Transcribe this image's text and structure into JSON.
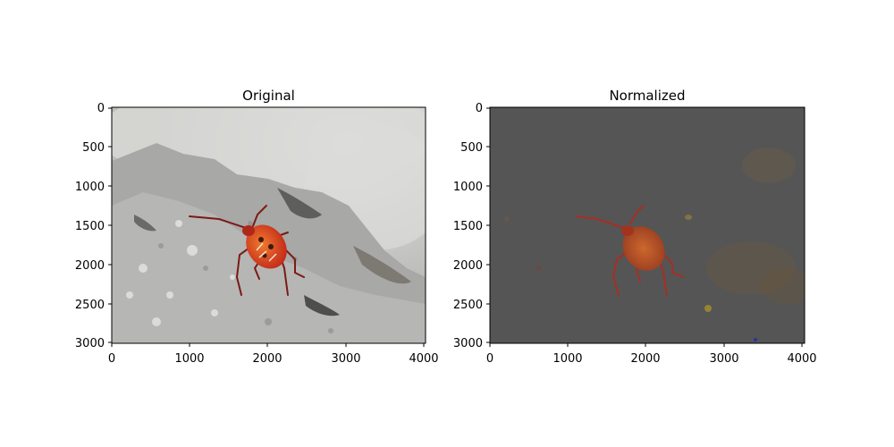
{
  "figure": {
    "panels": [
      {
        "id": "left",
        "title": "Original",
        "x_ticks": [
          "0",
          "1000",
          "2000",
          "3000",
          "4000"
        ],
        "y_ticks": [
          "0",
          "500",
          "1000",
          "1500",
          "2000",
          "2500",
          "3000"
        ]
      },
      {
        "id": "right",
        "title": "Normalized",
        "x_ticks": [
          "0",
          "1000",
          "2000",
          "3000",
          "4000"
        ],
        "y_ticks": [
          "0",
          "500",
          "1000",
          "1500",
          "2000",
          "2500",
          "3000"
        ]
      }
    ]
  },
  "colors": {
    "axis": "#000000",
    "rock_light": "#c8c8c6",
    "rock_mid": "#9c9c9a",
    "rock_dark": "#6e6e6c",
    "bug_red": "#d23a22",
    "bug_orange": "#e06a2a",
    "normalized_bg": "#555555",
    "normalized_bug": "#c44a26"
  }
}
